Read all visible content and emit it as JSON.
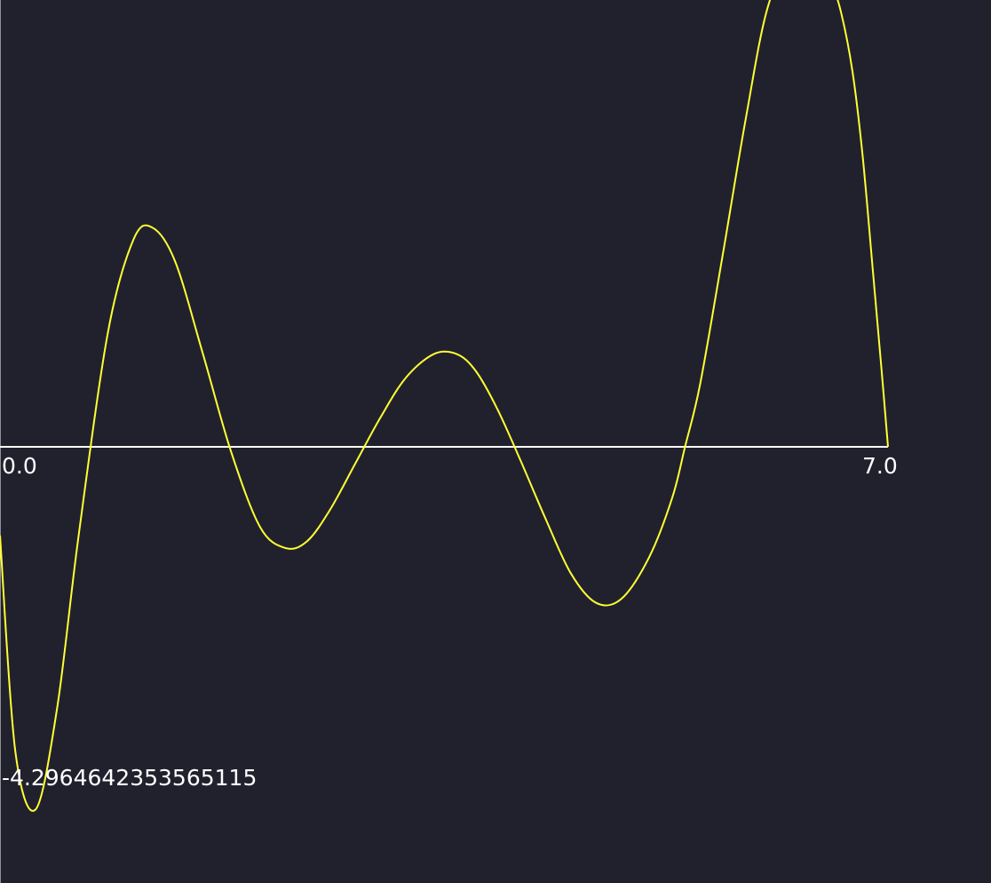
{
  "chart_data": {
    "type": "line",
    "x_tick_labels": [
      "0.0",
      "7.0"
    ],
    "y_min_label": "-4.2964642353565115",
    "xlim": [
      0.0,
      7.0
    ],
    "ylim": [
      -4.2964642353565115,
      5.5
    ],
    "grid": false,
    "colors": {
      "background": "#21212e",
      "line": "#ffff33",
      "axis": "#ffffff",
      "text": "#ffffff"
    },
    "series": [
      {
        "x": [
          0.0,
          0.12,
          0.28,
          0.45,
          0.62,
          0.85,
          1.05,
          1.2,
          1.38,
          1.6,
          1.82,
          2.05,
          2.25,
          2.42,
          2.6,
          2.8,
          3.0,
          3.2,
          3.42,
          3.6,
          3.75,
          3.92,
          4.1,
          4.3,
          4.5,
          4.7,
          4.9,
          5.12,
          5.3,
          5.4,
          5.52,
          5.7,
          5.88,
          6.05,
          6.25,
          6.42,
          6.55,
          6.63,
          6.72,
          6.8,
          6.88,
          6.95,
          7.0
        ],
        "y": [
          -1.05,
          -3.6,
          -4.3,
          -3.1,
          -1.05,
          1.35,
          2.45,
          2.6,
          2.2,
          1.1,
          -0.05,
          -0.95,
          -1.2,
          -1.12,
          -0.75,
          -0.2,
          0.35,
          0.82,
          1.1,
          1.1,
          0.9,
          0.45,
          -0.15,
          -0.85,
          -1.5,
          -1.85,
          -1.8,
          -1.3,
          -0.6,
          0.0,
          0.75,
          2.3,
          3.9,
          5.2,
          5.85,
          5.85,
          5.5,
          5.15,
          4.45,
          3.45,
          2.1,
          0.9,
          0.0
        ]
      }
    ]
  }
}
